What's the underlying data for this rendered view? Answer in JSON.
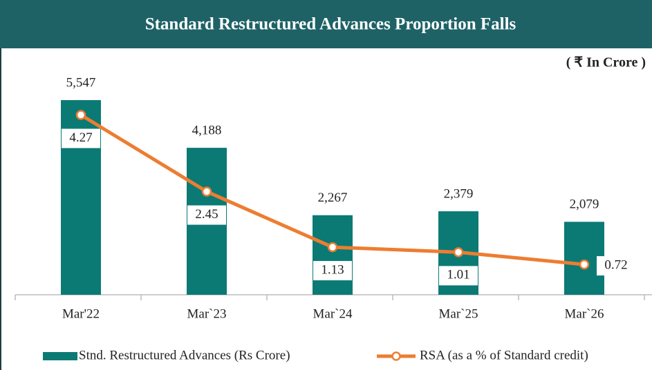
{
  "chart_data": {
    "type": "bar",
    "title": "Standard Restructured Advances Proportion Falls",
    "unit_label": "( ₹ In Crore )",
    "categories": [
      "Mar'22",
      "Mar`23",
      "Mar`24",
      "Mar`25",
      "Mar`26"
    ],
    "series": [
      {
        "name": "Stnd. Restructured Advances (Rs Crore)",
        "type": "bar",
        "color": "#0b7a75",
        "values": [
          5547,
          4188,
          2267,
          2379,
          2079
        ],
        "value_labels": [
          "5,547",
          "4,188",
          "2,267",
          "2,379",
          "2,079"
        ]
      },
      {
        "name": "RSA (as a % of Standard credit)",
        "type": "line",
        "color": "#ed7d31",
        "axis": "y2",
        "values": [
          4.27,
          2.45,
          1.13,
          1.01,
          0.72
        ]
      }
    ],
    "ylim": [
      0,
      6000
    ],
    "y2lim": [
      0,
      5
    ],
    "legend": "bottom"
  }
}
